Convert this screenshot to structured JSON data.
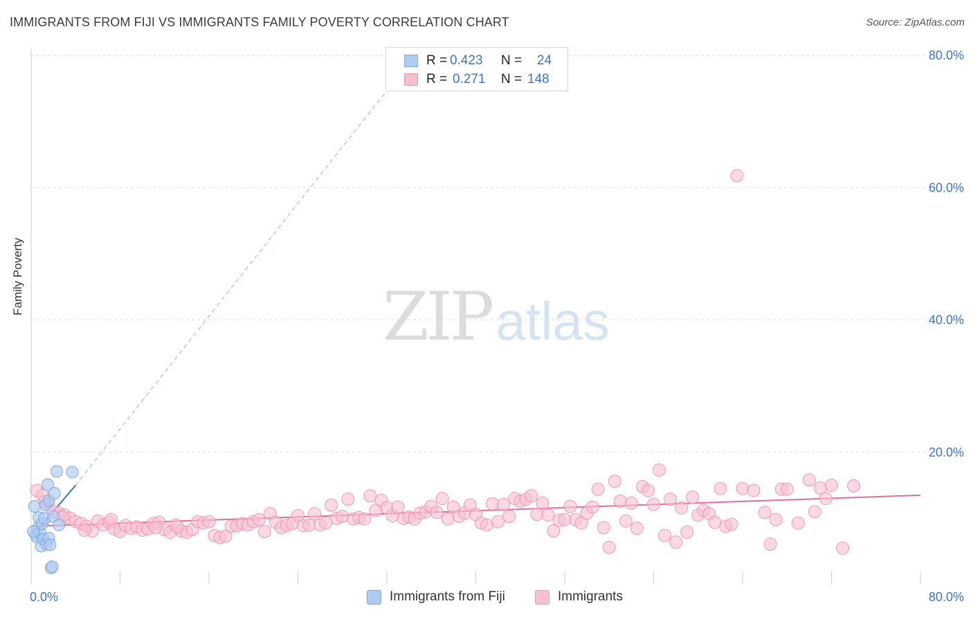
{
  "header": {
    "title": "IMMIGRANTS FROM FIJI VS IMMIGRANTS FAMILY POVERTY CORRELATION CHART",
    "source": "Source: ZipAtlas.com"
  },
  "watermark": {
    "part1": "ZIP",
    "part2": "atlas"
  },
  "legend_top": {
    "rows": [
      {
        "r_label": "R =",
        "r_value": "0.423",
        "n_label": "N =",
        "n_value": "24"
      },
      {
        "r_label": "R =",
        "r_value": "0.271",
        "n_label": "N =",
        "n_value": "148"
      }
    ]
  },
  "legend_bottom": {
    "items": [
      {
        "label": "Immigrants from Fiji"
      },
      {
        "label": "Immigrants"
      }
    ]
  },
  "colors": {
    "fiji_fill": "#aecbf2",
    "fiji_stroke": "#7fa8e0",
    "fiji_line": "#3a73c9",
    "imm_fill": "#f7bfd0",
    "imm_stroke": "#ee97b3",
    "imm_line": "#e86a96",
    "grid": "#dddddd",
    "tick_label": "#3a73c9"
  },
  "chart_data": {
    "type": "scatter",
    "title": "IMMIGRANTS FROM FIJI VS IMMIGRANTS FAMILY POVERTY CORRELATION CHART",
    "xlabel": "",
    "ylabel": "Family Poverty",
    "xlim": [
      0,
      80
    ],
    "ylim": [
      0,
      80
    ],
    "x_tick_labels": [
      "0.0%",
      "80.0%"
    ],
    "y_ticks": [
      20,
      40,
      60,
      80
    ],
    "y_tick_labels": [
      "20.0%",
      "40.0%",
      "60.0%",
      "80.0%"
    ],
    "grid": true,
    "legend_position": "top-center",
    "series": [
      {
        "name": "Immigrants from Fiji",
        "R": 0.423,
        "N": 24,
        "trend": {
          "x0": 0.2,
          "y0": 7.5,
          "x1": 4.0,
          "y1": 15.0,
          "dashed_to_x": 34.5,
          "dashed_to_y": 80.0
        },
        "points": [
          [
            0.3,
            11.8
          ],
          [
            0.4,
            7.6
          ],
          [
            0.5,
            7.2
          ],
          [
            0.6,
            8.5
          ],
          [
            0.7,
            10.1
          ],
          [
            0.8,
            7.8
          ],
          [
            0.9,
            5.8
          ],
          [
            1.0,
            9.2
          ],
          [
            1.1,
            6.8
          ],
          [
            1.2,
            10.0
          ],
          [
            1.3,
            12.0
          ],
          [
            1.4,
            6.1
          ],
          [
            1.5,
            15.1
          ],
          [
            1.6,
            7.0
          ],
          [
            1.6,
            12.7
          ],
          [
            1.7,
            6.0
          ],
          [
            1.8,
            2.5
          ],
          [
            1.9,
            2.7
          ],
          [
            2.0,
            10.3
          ],
          [
            2.1,
            13.8
          ],
          [
            2.3,
            17.1
          ],
          [
            2.5,
            9.0
          ],
          [
            3.7,
            17.0
          ],
          [
            0.2,
            8.0
          ]
        ]
      },
      {
        "name": "Immigrants",
        "R": 0.271,
        "N": 148,
        "trend": {
          "x0": 0,
          "y0": 8.8,
          "x1": 80,
          "y1": 13.5
        },
        "points": [
          [
            0.5,
            14.2
          ],
          [
            1.0,
            13.5
          ],
          [
            1.5,
            12.3
          ],
          [
            2.0,
            11.0
          ],
          [
            2.5,
            10.8
          ],
          [
            3.0,
            10.5
          ],
          [
            3.5,
            10.0
          ],
          [
            4.0,
            9.5
          ],
          [
            4.5,
            9.2
          ],
          [
            5.0,
            8.8
          ],
          [
            5.5,
            8.1
          ],
          [
            6.0,
            9.6
          ],
          [
            6.5,
            9.0
          ],
          [
            7.0,
            9.4
          ],
          [
            7.5,
            8.4
          ],
          [
            8.0,
            8.0
          ],
          [
            8.5,
            8.9
          ],
          [
            9.0,
            8.5
          ],
          [
            9.5,
            8.7
          ],
          [
            10.0,
            8.2
          ],
          [
            10.5,
            8.4
          ],
          [
            11.0,
            9.2
          ],
          [
            11.5,
            9.4
          ],
          [
            12.0,
            8.3
          ],
          [
            12.5,
            7.9
          ],
          [
            13.0,
            9.0
          ],
          [
            13.5,
            8.1
          ],
          [
            14.0,
            7.9
          ],
          [
            14.5,
            8.3
          ],
          [
            15.0,
            9.5
          ],
          [
            15.5,
            9.3
          ],
          [
            16.0,
            9.5
          ],
          [
            16.5,
            7.4
          ],
          [
            17.0,
            7.1
          ],
          [
            17.5,
            7.3
          ],
          [
            18.0,
            8.8
          ],
          [
            18.5,
            8.9
          ],
          [
            19.0,
            9.2
          ],
          [
            19.5,
            9.0
          ],
          [
            20.0,
            9.5
          ],
          [
            20.5,
            9.8
          ],
          [
            21.0,
            8.0
          ],
          [
            21.5,
            10.7
          ],
          [
            22.0,
            9.4
          ],
          [
            22.5,
            8.6
          ],
          [
            23.0,
            8.9
          ],
          [
            23.5,
            9.2
          ],
          [
            24.0,
            10.4
          ],
          [
            24.5,
            8.9
          ],
          [
            25.0,
            9.0
          ],
          [
            25.5,
            10.7
          ],
          [
            26.0,
            9.0
          ],
          [
            26.5,
            9.3
          ],
          [
            27.0,
            12.0
          ],
          [
            27.5,
            10.0
          ],
          [
            28.0,
            10.3
          ],
          [
            28.5,
            12.9
          ],
          [
            29.0,
            9.9
          ],
          [
            29.5,
            10.1
          ],
          [
            30.0,
            9.9
          ],
          [
            30.5,
            13.4
          ],
          [
            31.0,
            11.2
          ],
          [
            31.5,
            12.7
          ],
          [
            32.0,
            11.6
          ],
          [
            32.5,
            10.4
          ],
          [
            33.0,
            11.7
          ],
          [
            33.5,
            10.0
          ],
          [
            34.0,
            10.2
          ],
          [
            34.5,
            9.9
          ],
          [
            35.0,
            10.8
          ],
          [
            35.5,
            11.0
          ],
          [
            36.0,
            11.8
          ],
          [
            36.5,
            10.9
          ],
          [
            37.0,
            13.0
          ],
          [
            37.5,
            9.9
          ],
          [
            38.0,
            11.7
          ],
          [
            38.5,
            10.3
          ],
          [
            39.0,
            10.8
          ],
          [
            39.5,
            12.0
          ],
          [
            40.0,
            10.6
          ],
          [
            40.5,
            9.3
          ],
          [
            41.0,
            9.0
          ],
          [
            41.5,
            12.2
          ],
          [
            42.0,
            9.5
          ],
          [
            42.5,
            12.1
          ],
          [
            43.0,
            10.3
          ],
          [
            43.5,
            13.0
          ],
          [
            44.0,
            12.6
          ],
          [
            44.5,
            12.9
          ],
          [
            45.0,
            13.4
          ],
          [
            45.5,
            10.6
          ],
          [
            46.0,
            12.3
          ],
          [
            46.5,
            10.5
          ],
          [
            47.0,
            8.1
          ],
          [
            47.5,
            9.7
          ],
          [
            48.0,
            9.8
          ],
          [
            48.5,
            11.8
          ],
          [
            49.0,
            9.8
          ],
          [
            49.5,
            9.3
          ],
          [
            50.0,
            10.8
          ],
          [
            50.5,
            11.7
          ],
          [
            51.0,
            14.4
          ],
          [
            51.5,
            8.6
          ],
          [
            52.0,
            5.6
          ],
          [
            52.5,
            15.6
          ],
          [
            53.0,
            12.6
          ],
          [
            53.5,
            9.6
          ],
          [
            54.0,
            12.3
          ],
          [
            54.5,
            8.5
          ],
          [
            55.0,
            14.8
          ],
          [
            55.5,
            14.2
          ],
          [
            56.0,
            12.1
          ],
          [
            56.5,
            17.3
          ],
          [
            57.0,
            7.4
          ],
          [
            57.5,
            12.9
          ],
          [
            58.0,
            6.4
          ],
          [
            58.5,
            11.6
          ],
          [
            59.0,
            7.9
          ],
          [
            59.5,
            13.2
          ],
          [
            60.0,
            10.5
          ],
          [
            60.5,
            11.2
          ],
          [
            61.0,
            10.7
          ],
          [
            61.5,
            9.4
          ],
          [
            62.0,
            14.5
          ],
          [
            62.5,
            8.8
          ],
          [
            63.0,
            9.1
          ],
          [
            63.5,
            61.8
          ],
          [
            64.0,
            14.5
          ],
          [
            65.0,
            14.2
          ],
          [
            66.0,
            10.9
          ],
          [
            66.5,
            6.1
          ],
          [
            67.0,
            9.8
          ],
          [
            67.5,
            14.4
          ],
          [
            68.0,
            14.4
          ],
          [
            69.0,
            9.3
          ],
          [
            70.0,
            15.8
          ],
          [
            70.5,
            11.0
          ],
          [
            71.0,
            14.6
          ],
          [
            71.5,
            13.0
          ],
          [
            72.0,
            15.0
          ],
          [
            73.0,
            5.5
          ],
          [
            74.0,
            14.9
          ],
          [
            1.2,
            12.5
          ],
          [
            2.8,
            10.2
          ],
          [
            4.8,
            8.2
          ],
          [
            7.2,
            9.8
          ],
          [
            11.2,
            8.6
          ],
          [
            13.2,
            8.7
          ]
        ]
      }
    ]
  }
}
